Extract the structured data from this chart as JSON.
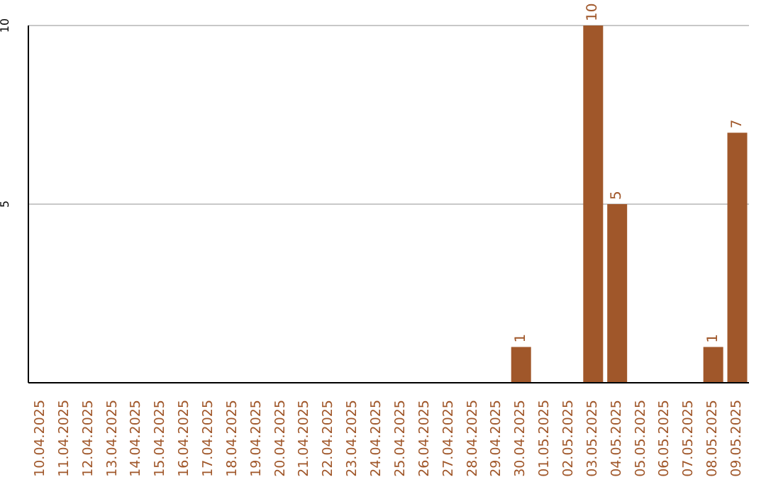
{
  "chart_data": {
    "type": "bar",
    "categories": [
      "10.04.2025",
      "11.04.2025",
      "12.04.2025",
      "13.04.2025",
      "14.04.2025",
      "15.04.2025",
      "16.04.2025",
      "17.04.2025",
      "18.04.2025",
      "19.04.2025",
      "20.04.2025",
      "21.04.2025",
      "22.04.2025",
      "23.04.2025",
      "24.04.2025",
      "25.04.2025",
      "26.04.2025",
      "27.04.2025",
      "28.04.2025",
      "29.04.2025",
      "30.04.2025",
      "01.05.2025",
      "02.05.2025",
      "03.05.2025",
      "04.05.2025",
      "05.05.2025",
      "06.05.2025",
      "07.05.2025",
      "08.05.2025",
      "09.05.2025"
    ],
    "values": [
      0,
      0,
      0,
      0,
      0,
      0,
      0,
      0,
      0,
      0,
      0,
      0,
      0,
      0,
      0,
      0,
      0,
      0,
      0,
      0,
      1,
      0,
      0,
      10,
      5,
      0,
      0,
      0,
      1,
      7
    ],
    "value_labels": [
      null,
      null,
      null,
      null,
      null,
      null,
      null,
      null,
      null,
      null,
      null,
      null,
      null,
      null,
      null,
      null,
      null,
      null,
      null,
      null,
      "1",
      null,
      null,
      "10",
      "5",
      null,
      null,
      null,
      "1",
      "7"
    ],
    "color": "#a0572a",
    "ylim": [
      0,
      10
    ],
    "yticks": [
      5,
      10
    ],
    "grid": "y"
  }
}
